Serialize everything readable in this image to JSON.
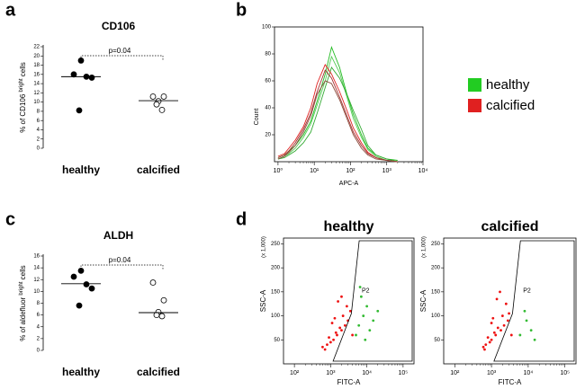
{
  "chart_data": [
    {
      "type": "dotplot",
      "label": "a",
      "title": "CD106",
      "ylabel": [
        "% of CD106 ",
        "bright",
        " cells"
      ],
      "categories": [
        "healthy",
        "calcified"
      ],
      "filled": [
        true,
        false
      ],
      "values": [
        [
          19,
          16,
          15.5,
          15.3,
          8.2
        ],
        [
          11.2,
          11.2,
          10.2,
          9.5,
          8.3
        ]
      ],
      "medians": [
        15.5,
        10.3
      ],
      "annotation": "p=0.04",
      "ylim": [
        0,
        22
      ],
      "yticks": [
        0,
        2,
        4,
        6,
        8,
        10,
        12,
        14,
        16,
        18,
        20,
        22
      ]
    },
    {
      "type": "histogram_overlay",
      "label": "b",
      "ylabel": "Count",
      "xlabel": "APC-A",
      "xlog": true,
      "x": [
        1,
        1.5,
        2,
        3,
        5,
        8,
        12,
        20,
        30,
        50,
        80,
        120,
        200,
        300,
        500,
        1000,
        2000
      ],
      "series": [
        {
          "name": "healthy",
          "color": "#22bb22",
          "values": [
            3,
            5,
            8,
            12,
            20,
            30,
            45,
            65,
            85,
            70,
            50,
            35,
            20,
            10,
            5,
            2,
            1
          ]
        },
        {
          "name": "healthy",
          "color": "#55cc55",
          "values": [
            2,
            4,
            6,
            10,
            18,
            28,
            42,
            60,
            78,
            66,
            48,
            32,
            18,
            9,
            4,
            1,
            0
          ]
        },
        {
          "name": "healthy",
          "color": "#33aa33",
          "values": [
            2,
            3,
            5,
            8,
            14,
            22,
            36,
            55,
            70,
            62,
            50,
            38,
            24,
            12,
            5,
            2,
            0
          ]
        },
        {
          "name": "calcified",
          "color": "#e02020",
          "values": [
            4,
            6,
            10,
            16,
            26,
            40,
            58,
            72,
            65,
            52,
            38,
            25,
            14,
            7,
            3,
            1,
            0
          ]
        },
        {
          "name": "calcified",
          "color": "#a03030",
          "values": [
            3,
            5,
            8,
            14,
            24,
            36,
            52,
            68,
            62,
            48,
            34,
            22,
            12,
            6,
            3,
            1,
            0
          ]
        },
        {
          "name": "calcified",
          "color": "#8b4a3a",
          "values": [
            2,
            4,
            7,
            12,
            22,
            34,
            50,
            60,
            58,
            46,
            32,
            20,
            10,
            5,
            2,
            1,
            0
          ]
        }
      ],
      "legend_colors": {
        "healthy": "#22cc22",
        "calcified": "#e02020"
      },
      "xlim": [
        0.8,
        10000
      ],
      "xticks": [
        {
          "value": 1,
          "label": "10⁰"
        },
        {
          "value": 10,
          "label": "10¹"
        },
        {
          "value": 100,
          "label": "10²"
        },
        {
          "value": 1000,
          "label": "10³"
        },
        {
          "value": 10000,
          "label": "10⁴"
        }
      ],
      "ylim": [
        0,
        100
      ],
      "yticks": [
        20,
        40,
        60,
        80,
        100
      ]
    },
    {
      "type": "dotplot",
      "label": "c",
      "title": "ALDH",
      "ylabel": [
        "% of aldefluor ",
        "bright",
        " cells"
      ],
      "categories": [
        "healthy",
        "calcified"
      ],
      "filled": [
        true,
        false
      ],
      "values": [
        [
          13.5,
          12.5,
          11.2,
          10.5,
          7.6
        ],
        [
          11.5,
          8.5,
          6.5,
          6,
          5.8
        ]
      ],
      "medians": [
        11.3,
        6.4
      ],
      "annotation": "p=0.04",
      "ylim": [
        0,
        16
      ],
      "yticks": [
        0,
        2,
        4,
        6,
        8,
        10,
        12,
        14,
        16
      ]
    },
    {
      "type": "flow",
      "label": "d",
      "title": "healthy",
      "ylabel": "SSC-A",
      "yunit": "(x 1,000)",
      "xlabel": "FITC-A",
      "gate_label": "P2",
      "xlog": true,
      "series": [
        {
          "color": "#ee1111",
          "x": [
            800,
            1200,
            1500,
            2000,
            2500,
            3000,
            1000,
            1800,
            2200,
            600,
            900,
            1400,
            3500,
            2800,
            1600,
            700,
            1100,
            2000,
            4000,
            1300
          ],
          "y": [
            40,
            50,
            60,
            70,
            80,
            90,
            45,
            75,
            100,
            35,
            55,
            65,
            110,
            120,
            130,
            30,
            85,
            140,
            60,
            95
          ]
        },
        {
          "color": "#33bb33",
          "x": [
            5000,
            6000,
            8000,
            10000,
            15000,
            7000,
            12000,
            9000,
            20000,
            6500
          ],
          "y": [
            60,
            80,
            100,
            120,
            90,
            140,
            70,
            50,
            110,
            160
          ]
        }
      ],
      "xlim": [
        50,
        200000
      ],
      "xticks": [
        {
          "value": 100,
          "label": "10²"
        },
        {
          "value": 1000,
          "label": "10³"
        },
        {
          "value": 10000,
          "label": "10⁴"
        },
        {
          "value": 100000,
          "label": "10⁵"
        }
      ],
      "ylim": [
        0,
        262
      ],
      "yticks": [
        50,
        100,
        150,
        200,
        250
      ]
    },
    {
      "type": "flow",
      "title": "calcified",
      "ylabel": "SSC-A",
      "yunit": "(x 1,000)",
      "xlabel": "FITC-A",
      "gate_label": "P2",
      "xlog": true,
      "series": [
        {
          "color": "#ee1111",
          "x": [
            700,
            1000,
            1300,
            1800,
            2200,
            2800,
            900,
            1500,
            2000,
            600,
            800,
            1200,
            3000,
            2500,
            1400,
            650,
            1000,
            1700,
            3500,
            1100
          ],
          "y": [
            40,
            50,
            60,
            70,
            80,
            90,
            45,
            75,
            100,
            35,
            55,
            65,
            105,
            125,
            135,
            30,
            85,
            150,
            60,
            95
          ]
        },
        {
          "color": "#33bb33",
          "x": [
            6000,
            9000,
            12000,
            8000,
            15000
          ],
          "y": [
            60,
            90,
            70,
            110,
            50
          ]
        }
      ],
      "xlim": [
        50,
        200000
      ],
      "xticks": [
        {
          "value": 100,
          "label": "10²"
        },
        {
          "value": 1000,
          "label": "10³"
        },
        {
          "value": 10000,
          "label": "10⁴"
        },
        {
          "value": 100000,
          "label": "10⁵"
        }
      ],
      "ylim": [
        0,
        262
      ],
      "yticks": [
        50,
        100,
        150,
        200,
        250
      ]
    }
  ]
}
